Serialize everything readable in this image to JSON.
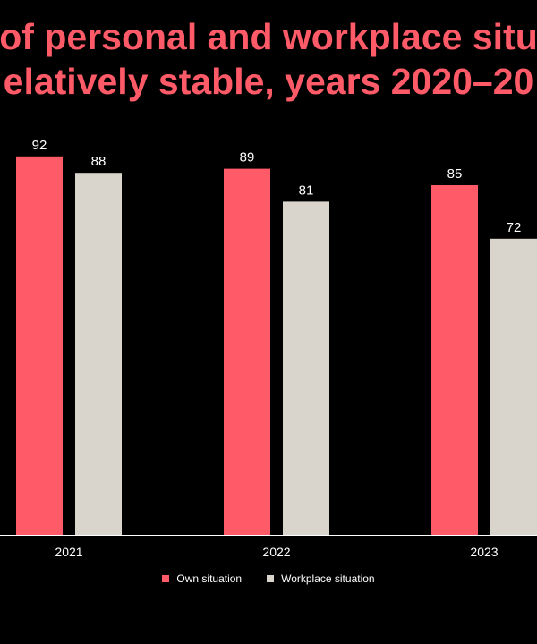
{
  "title_lines": [
    "of personal and workplace situ",
    "elatively stable, years 2020–20"
  ],
  "colors": {
    "background": "#000000",
    "own": "#ff5a68",
    "workplace": "#d9d4cc",
    "axis": "#ffffff",
    "text": "#ffffff"
  },
  "legend": {
    "own_label": "Own situation",
    "workplace_label": "Workplace situation"
  },
  "chart_data": {
    "type": "bar",
    "categories": [
      "2021",
      "2022",
      "2023"
    ],
    "series": [
      {
        "name": "Own situation",
        "values": [
          92,
          89,
          85
        ]
      },
      {
        "name": "Workplace situation",
        "values": [
          88,
          81,
          72
        ]
      }
    ],
    "ylim": [
      0,
      100
    ],
    "grid": false,
    "legend_position": "bottom"
  }
}
